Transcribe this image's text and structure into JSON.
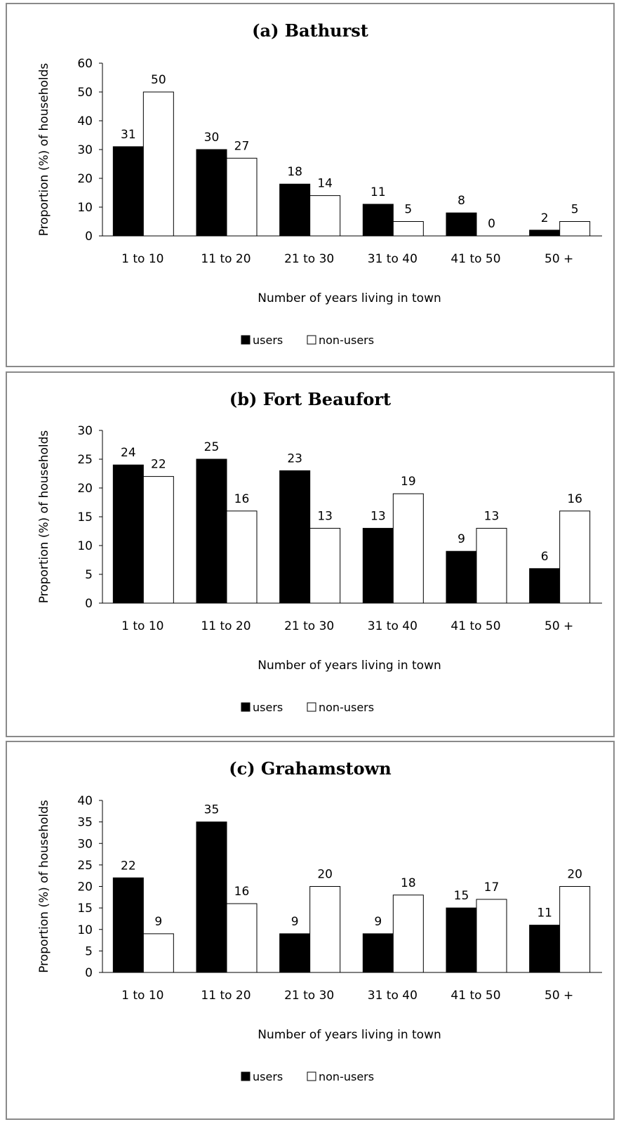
{
  "chart_data": [
    {
      "type": "bar",
      "title": "(a) Bathurst",
      "xlabel": "Number of years living in town",
      "ylabel": "Proportion (%) of households",
      "categories": [
        "1 to 10",
        "11 to 20",
        "21 to 30",
        "31 to 40",
        "41 to 50",
        "50 +"
      ],
      "ylim": [
        0,
        60
      ],
      "yticks": [
        "0",
        "10",
        "20",
        "30",
        "40",
        "50",
        "60"
      ],
      "series": [
        {
          "name": "users",
          "values": [
            31,
            30,
            18,
            11,
            8,
            2
          ]
        },
        {
          "name": "non-users",
          "values": [
            50,
            27,
            14,
            5,
            0,
            5
          ]
        }
      ],
      "legend": "bottom",
      "grid": false
    },
    {
      "type": "bar",
      "title": "(b) Fort Beaufort",
      "xlabel": "Number of years living in town",
      "ylabel": "Proportion (%) of households",
      "categories": [
        "1 to 10",
        "11 to 20",
        "21 to 30",
        "31 to 40",
        "41 to 50",
        "50 +"
      ],
      "ylim": [
        0,
        30
      ],
      "yticks": [
        "0",
        "5",
        "10",
        "15",
        "20",
        "25",
        "30"
      ],
      "series": [
        {
          "name": "users",
          "values": [
            24,
            25,
            23,
            13,
            9,
            6
          ]
        },
        {
          "name": "non-users",
          "values": [
            22,
            16,
            13,
            19,
            13,
            16
          ]
        }
      ],
      "legend": "bottom",
      "grid": false
    },
    {
      "type": "bar",
      "title": "(c) Grahamstown",
      "xlabel": "Number of years living in town",
      "ylabel": "Proportion (%) of households",
      "categories": [
        "1 to 10",
        "11 to 20",
        "21 to 30",
        "31 to 40",
        "41 to 50",
        "50 +"
      ],
      "ylim": [
        0,
        40
      ],
      "yticks": [
        "0",
        "5",
        "10",
        "15",
        "20",
        "25",
        "30",
        "35",
        "40"
      ],
      "series": [
        {
          "name": "users",
          "values": [
            22,
            35,
            9,
            9,
            15,
            11
          ]
        },
        {
          "name": "non-users",
          "values": [
            9,
            16,
            20,
            18,
            17,
            20
          ]
        }
      ],
      "legend": "bottom",
      "grid": false
    }
  ],
  "colors": {
    "users": "#000000",
    "non_users": "#ffffff",
    "frame": "#8a8a8a"
  }
}
